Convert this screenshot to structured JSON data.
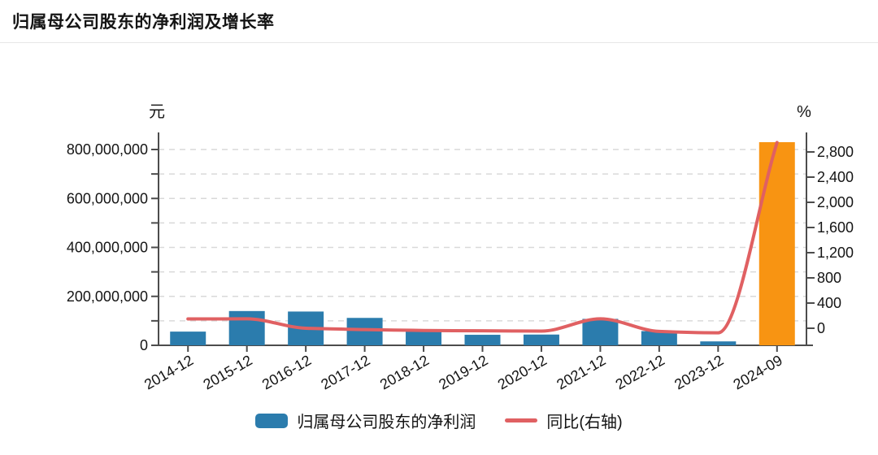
{
  "page": {
    "title": "归属母公司股东的净利润及增长率"
  },
  "legend": {
    "items": [
      {
        "label": "归属母公司股东的净利润",
        "type": "bar",
        "color": "#2b7cad"
      },
      {
        "label": "同比(右轴)",
        "type": "line",
        "color": "#e06062"
      }
    ]
  },
  "chart_data": {
    "type": "bar+line",
    "title": "归属母公司股东的净利润及增长率",
    "categories": [
      "2014-12",
      "2015-12",
      "2016-12",
      "2017-12",
      "2018-12",
      "2019-12",
      "2020-12",
      "2021-12",
      "2022-12",
      "2023-12",
      "2024-09"
    ],
    "series": [
      {
        "name": "归属母公司股东的净利润",
        "type": "bar",
        "axis": "left",
        "unit": "元",
        "color": "#2b7cad",
        "highlight_index": 10,
        "highlight_color": "#f89412",
        "values": [
          56000000,
          140000000,
          138000000,
          112000000,
          58000000,
          43000000,
          44000000,
          108000000,
          58000000,
          16000000,
          830000000
        ]
      },
      {
        "name": "同比(右轴)",
        "type": "line",
        "axis": "right",
        "unit": "%",
        "color": "#e06062",
        "values": [
          148,
          150,
          0,
          -20,
          -35,
          -40,
          -45,
          150,
          -50,
          -72,
          2950
        ]
      }
    ],
    "left_axis": {
      "unit": "元",
      "min": 0,
      "max": 800000000,
      "label_step": 200000000,
      "grid_step": 100000000,
      "tick_labels": [
        "0",
        "200,000,000",
        "400,000,000",
        "600,000,000",
        "800,000,000"
      ]
    },
    "right_axis": {
      "unit": "%",
      "min": 0,
      "max": 2800,
      "step": 400,
      "tick_labels": [
        "0",
        "400",
        "800",
        "1,200",
        "1,600",
        "2,000",
        "2,400",
        "2,800"
      ]
    },
    "grid": "dashed",
    "legend_position": "bottom",
    "colors": {
      "axis": "#4c4c4c",
      "grid": "#d9d9d9",
      "text": "#141414"
    }
  }
}
